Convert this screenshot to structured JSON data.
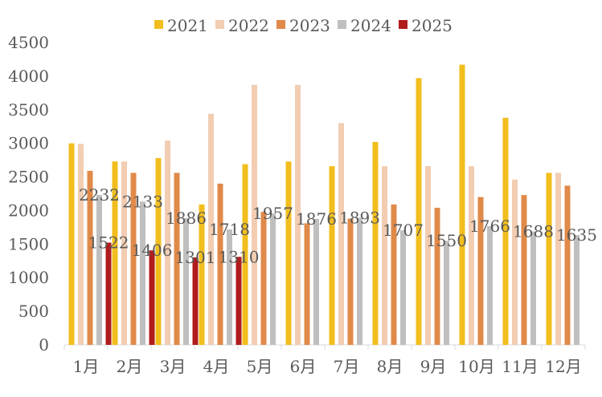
{
  "chart_data": {
    "type": "bar",
    "title": "",
    "xlabel": "",
    "ylabel": "",
    "ylim": [
      0,
      4500
    ],
    "yticks": [
      0,
      500,
      1000,
      1500,
      2000,
      2500,
      3000,
      3500,
      4000,
      4500
    ],
    "grid": false,
    "legend_position": "top-center",
    "categories": [
      "1月",
      "2月",
      "3月",
      "4月",
      "5月",
      "6月",
      "7月",
      "8月",
      "9月",
      "10月",
      "11月",
      "12月"
    ],
    "series": [
      {
        "name": "2021",
        "color": "#F2BE1E",
        "values": [
          3000,
          2730,
          2780,
          2090,
          2690,
          2730,
          2660,
          3020,
          3970,
          4170,
          3380,
          2560
        ]
      },
      {
        "name": "2022",
        "color": "#F2CDB2",
        "values": [
          2990,
          2730,
          3040,
          3440,
          3870,
          3870,
          3300,
          2660,
          2660,
          2660,
          2460,
          2560
        ]
      },
      {
        "name": "2023",
        "color": "#E08A4A",
        "values": [
          2590,
          2560,
          2560,
          2400,
          1980,
          1810,
          1880,
          2090,
          2040,
          2200,
          2230,
          2370
        ]
      },
      {
        "name": "2024",
        "color": "#BFBFBF",
        "values": [
          2232,
          2133,
          1886,
          1718,
          1957,
          1876,
          1893,
          1707,
          1550,
          1766,
          1688,
          1635
        ]
      },
      {
        "name": "2025",
        "color": "#B01C1C",
        "values": [
          1522,
          1406,
          1301,
          1310,
          null,
          null,
          null,
          null,
          null,
          null,
          null,
          null
        ]
      }
    ],
    "data_labels": [
      {
        "series": "2024",
        "values": [
          "2232",
          "2133",
          "1886",
          "1718",
          "1957",
          "1876",
          "1893",
          "1707",
          "1550",
          "1766",
          "1688",
          "1635"
        ]
      },
      {
        "series": "2025",
        "values": [
          "1522",
          "1406",
          "1301",
          "1310"
        ]
      }
    ]
  }
}
